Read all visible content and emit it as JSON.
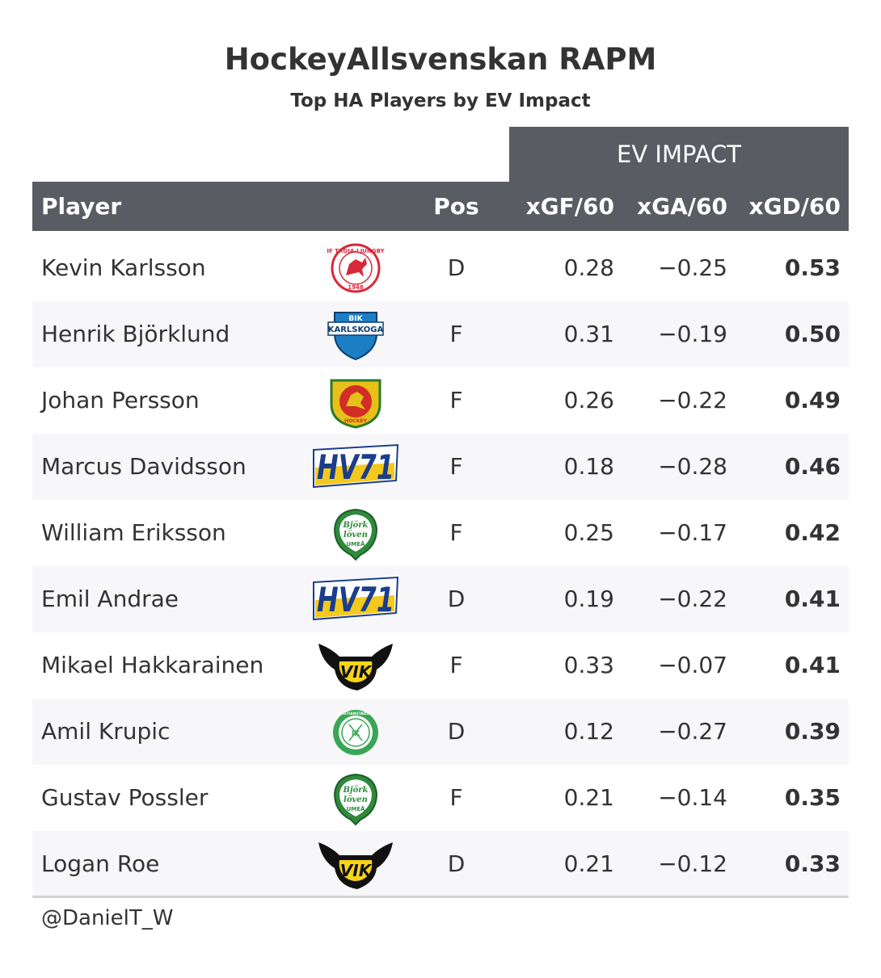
{
  "chart_data": {
    "type": "table",
    "title": "HockeyAllsvenskan RAPM",
    "subtitle": "Top HA Players by EV Impact",
    "spanner": "EV IMPACT",
    "columns": [
      "Player",
      "Pos",
      "xGF/60",
      "xGA/60",
      "xGD/60"
    ],
    "rows": [
      {
        "player": "Kevin Karlsson",
        "logo": "troja-ljungby-logo",
        "pos": "D",
        "xgf": "0.28",
        "xga": "−0.25",
        "xgd": "0.53"
      },
      {
        "player": "Henrik Björklund",
        "logo": "bik-karlskoga-logo",
        "pos": "F",
        "xgf": "0.31",
        "xga": "−0.19",
        "xgd": "0.50"
      },
      {
        "player": "Johan Persson",
        "logo": "sodertalje-logo",
        "pos": "F",
        "xgf": "0.26",
        "xga": "−0.22",
        "xgd": "0.49"
      },
      {
        "player": "Marcus Davidsson",
        "logo": "hv71-logo",
        "pos": "F",
        "xgf": "0.18",
        "xga": "−0.28",
        "xgd": "0.46"
      },
      {
        "player": "William Eriksson",
        "logo": "bjorkloven-logo",
        "pos": "F",
        "xgf": "0.25",
        "xga": "−0.17",
        "xgd": "0.42"
      },
      {
        "player": "Emil Andrae",
        "logo": "hv71-logo",
        "pos": "D",
        "xgf": "0.19",
        "xga": "−0.22",
        "xgd": "0.41"
      },
      {
        "player": "Mikael Hakkarainen",
        "logo": "vik-vasteras-logo",
        "pos": "F",
        "xgf": "0.33",
        "xga": "−0.07",
        "xgd": "0.41"
      },
      {
        "player": "Amil Krupic",
        "logo": "kristianstad-logo",
        "pos": "D",
        "xgf": "0.12",
        "xga": "−0.27",
        "xgd": "0.39"
      },
      {
        "player": "Gustav Possler",
        "logo": "bjorkloven-logo",
        "pos": "F",
        "xgf": "0.21",
        "xga": "−0.14",
        "xgd": "0.35"
      },
      {
        "player": "Logan Roe",
        "logo": "vik-vasteras-logo",
        "pos": "D",
        "xgf": "0.21",
        "xga": "−0.12",
        "xgd": "0.33"
      }
    ]
  },
  "logo_text": {
    "troja": "IF TROJA-LJUNGBY",
    "troja_year": "1948",
    "bik_top": "BIK",
    "bik_main": "KARLSKOGA",
    "hv71": "HV71",
    "bjork_1": "Björk",
    "bjork_2": "löven",
    "bjork_3": "UMEÅ",
    "vik": "VIK",
    "kristianstad": "KRISTIANSTADS IK",
    "kristianstad_letters": "IK",
    "sodertalje": "HOCKEY"
  },
  "credit": "@DanielT_W",
  "colors": {
    "header_bg": "#595c62",
    "alt_row": "#f7f7f9",
    "text": "#333333"
  }
}
